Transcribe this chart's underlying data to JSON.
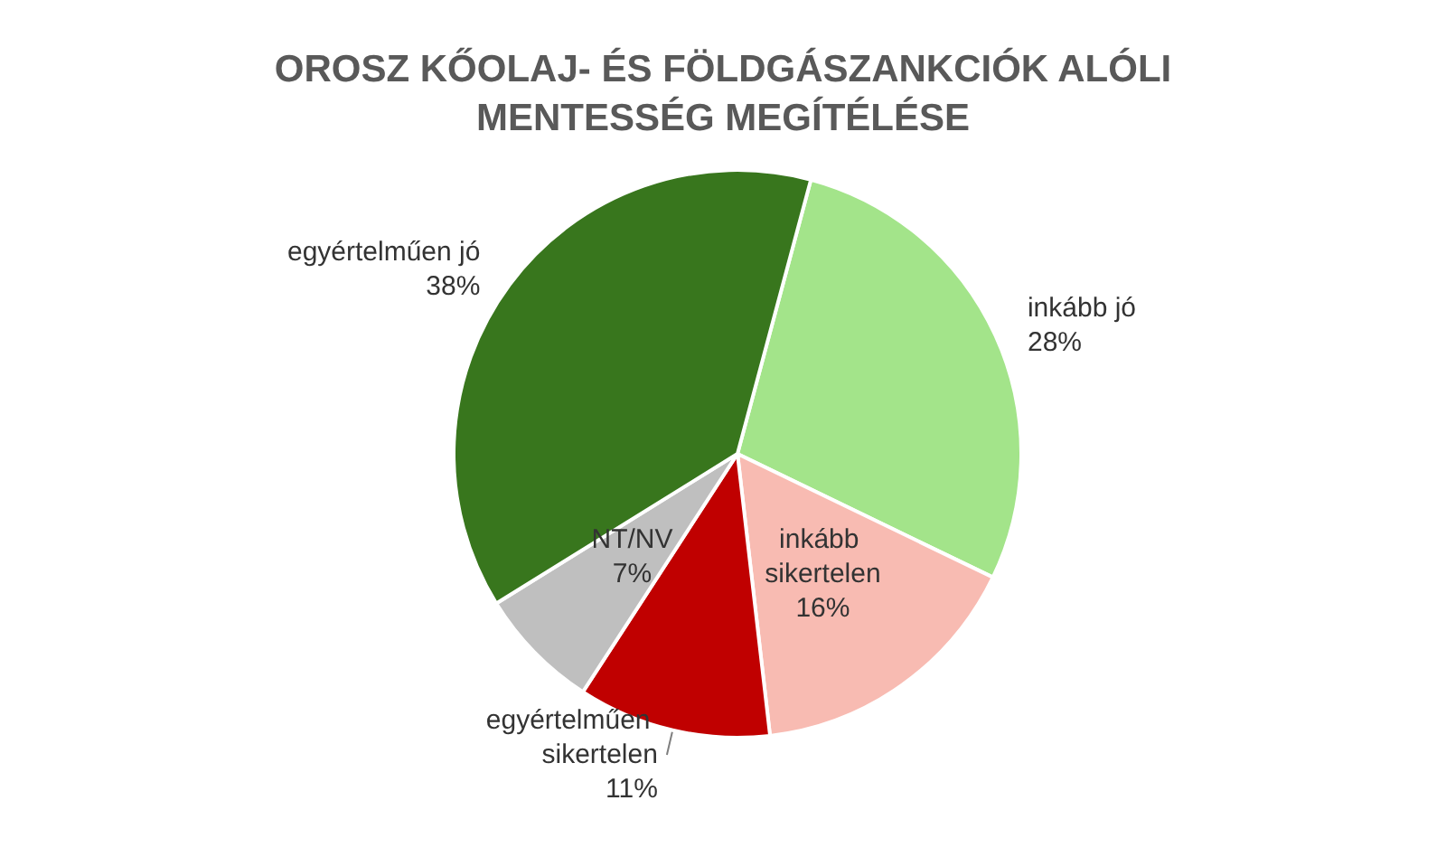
{
  "chart_data": {
    "type": "pie",
    "title": "OROSZ KŐOLAJ- ÉS FÖLDGÁSZANKCIÓK ALÓLI\nMENTESSÉG MEGÍTÉLÉSE",
    "categories": [
      "inkább jó",
      "inkább sikertelen",
      "egyértelműen sikertelen",
      "NT/NV",
      "egyértelműen jó"
    ],
    "values": [
      28,
      16,
      11,
      7,
      38
    ],
    "value_labels": [
      "28%",
      "16%",
      "11%",
      "7%",
      "38%"
    ],
    "colors": [
      "#a3e48a",
      "#f8bbb2",
      "#c00000",
      "#bfbfbf",
      "#38761d"
    ],
    "legend": false
  }
}
